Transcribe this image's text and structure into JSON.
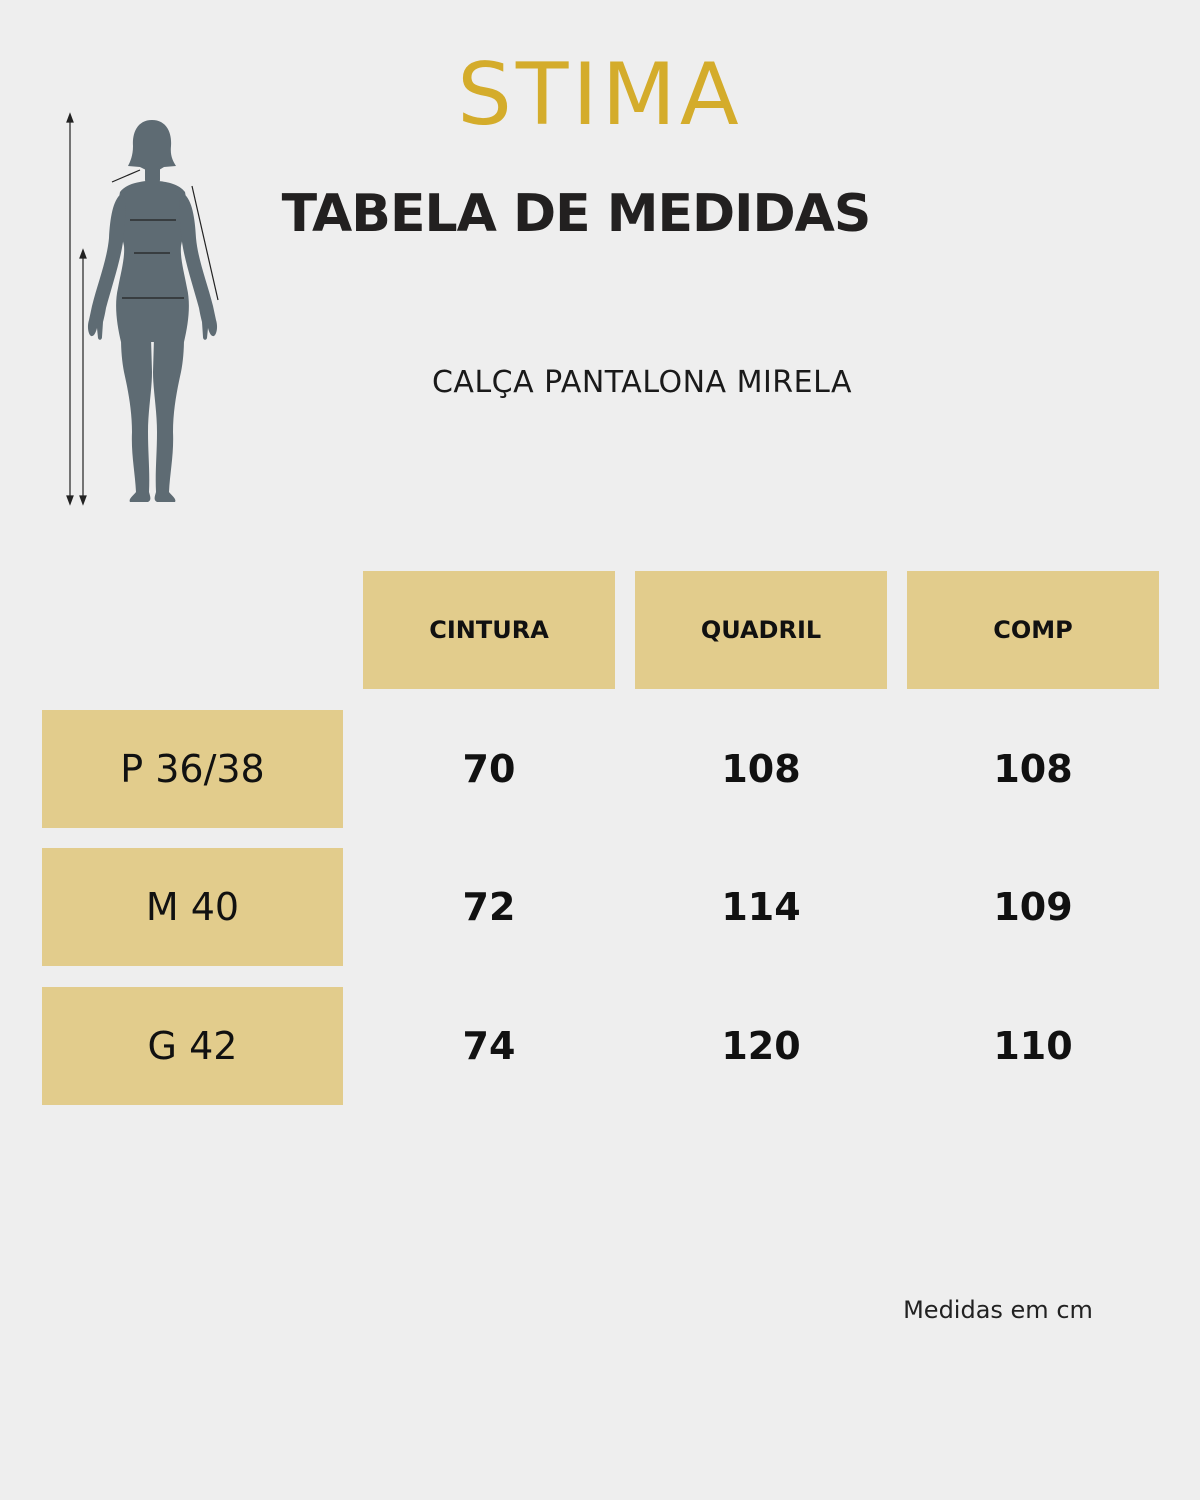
{
  "brand": {
    "logo_text": "STIMA",
    "color": "#d4ac2b"
  },
  "title": "TABELA DE MEDIDAS",
  "product_name": "CALÇA PANTALONA MIRELA",
  "illustration": {
    "icon": "female-body-measurement-icon",
    "color": "#5e6b73"
  },
  "table": {
    "accent_color": "#e2cc8c",
    "columns": [
      "CINTURA",
      "QUADRIL",
      "COMP"
    ],
    "rows": [
      {
        "size": "P 36/38",
        "values": [
          "70",
          "108",
          "108"
        ]
      },
      {
        "size": "M 40",
        "values": [
          "72",
          "114",
          "109"
        ]
      },
      {
        "size": "G 42",
        "values": [
          "74",
          "120",
          "110"
        ]
      }
    ]
  },
  "footnote": "Medidas em cm"
}
